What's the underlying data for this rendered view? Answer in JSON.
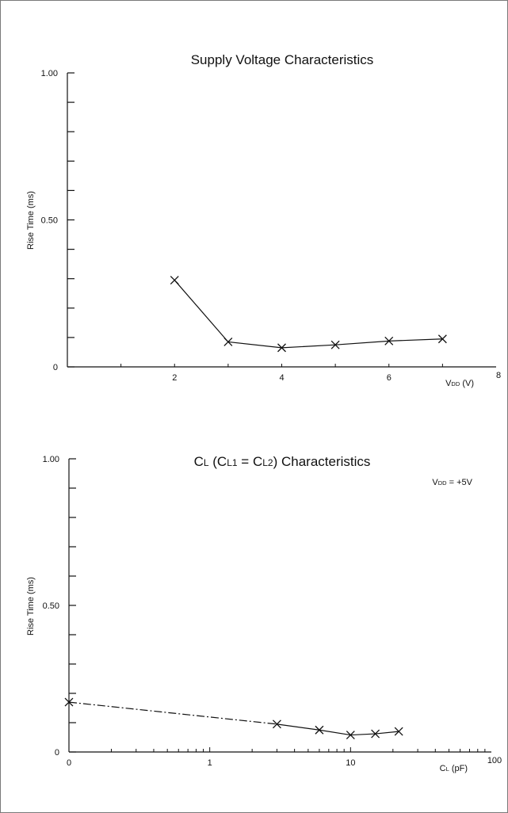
{
  "chart_data": [
    {
      "type": "line",
      "title": "Supply Voltage Characteristics",
      "xlabel": {
        "main": "V",
        "sub": "DD",
        "unit": " (V)"
      },
      "ylabel": "Rise Time (ms)",
      "xlim": [
        0,
        8
      ],
      "ylim": [
        0,
        1.0
      ],
      "x_ticks": [
        2,
        4,
        6,
        8
      ],
      "y_tick_labels": [
        {
          "value": 0,
          "label": "0"
        },
        {
          "value": 0.5,
          "label": "0.50"
        },
        {
          "value": 1.0,
          "label": "1.00"
        }
      ],
      "marker": "x",
      "series": [
        {
          "x": [
            2,
            3,
            4,
            5,
            6,
            7
          ],
          "y": [
            0.295,
            0.085,
            0.065,
            0.075,
            0.088,
            0.095
          ]
        }
      ]
    },
    {
      "type": "line",
      "title": {
        "pre": "C",
        "sub1": "L",
        "mid1": " (C",
        "sub2": "L1",
        "mid2": " = C",
        "sub3": "L2",
        "post": ") Characteristics"
      },
      "annotation": {
        "main": "V",
        "sub": "DD",
        "rest": " = +5V"
      },
      "xlabel": {
        "main": "C",
        "sub": "L",
        "unit": " (pF)"
      },
      "ylabel": "Rise Time (ms)",
      "xscale": "log",
      "xlim": [
        0.1,
        100
      ],
      "ylim": [
        0,
        1.0
      ],
      "x_tick_labels": [
        {
          "value": 0.1,
          "label": "0"
        },
        {
          "value": 1,
          "label": "1"
        },
        {
          "value": 10,
          "label": "10"
        },
        {
          "value": 100,
          "label": "100"
        }
      ],
      "y_tick_labels": [
        {
          "value": 0,
          "label": "0"
        },
        {
          "value": 0.5,
          "label": "0.50"
        },
        {
          "value": 1.0,
          "label": "1.00"
        }
      ],
      "marker": "x",
      "series": [
        {
          "style": "dash-dot",
          "x": [
            0.1,
            3
          ],
          "y": [
            0.17,
            0.095
          ]
        },
        {
          "style": "solid",
          "x": [
            3,
            6,
            10,
            15,
            22
          ],
          "y": [
            0.095,
            0.075,
            0.058,
            0.062,
            0.07
          ]
        }
      ]
    }
  ]
}
